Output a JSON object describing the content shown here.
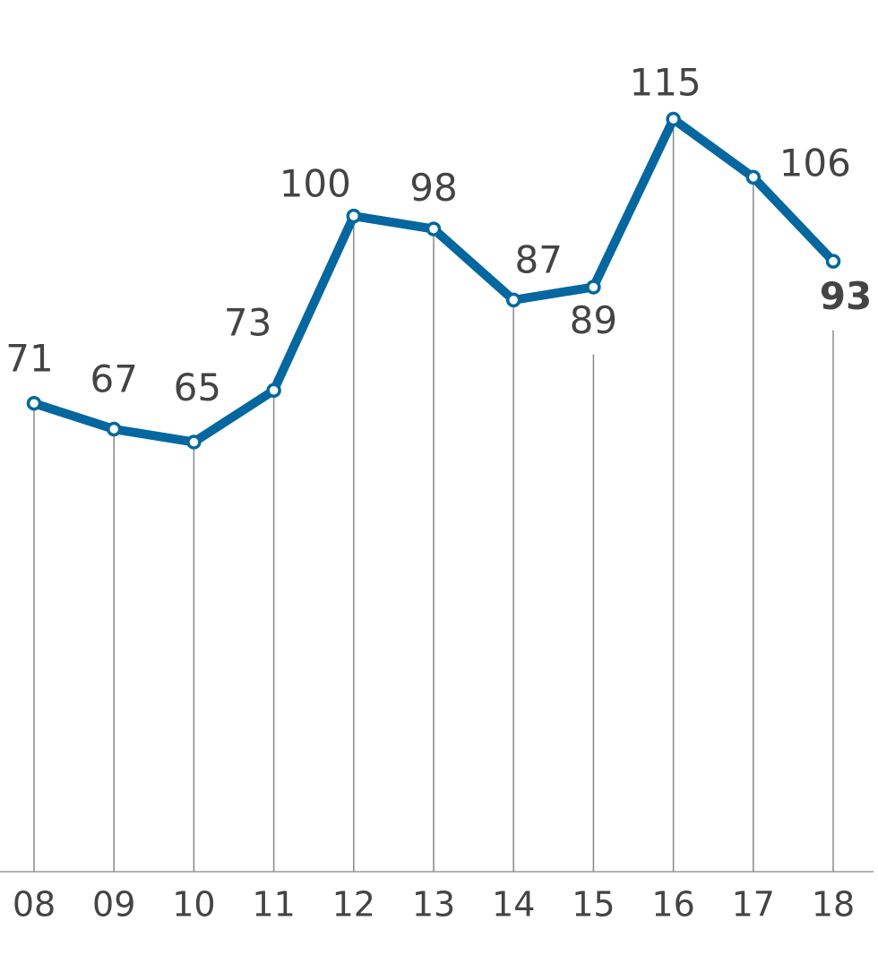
{
  "chart_data": {
    "type": "line",
    "categories": [
      "08",
      "09",
      "10",
      "11",
      "12",
      "13",
      "14",
      "15",
      "16",
      "17",
      "18"
    ],
    "values": [
      71,
      67,
      65,
      73,
      100,
      98,
      87,
      89,
      115,
      106,
      93
    ],
    "color": "#05679f",
    "ylim": [
      0,
      120
    ]
  }
}
